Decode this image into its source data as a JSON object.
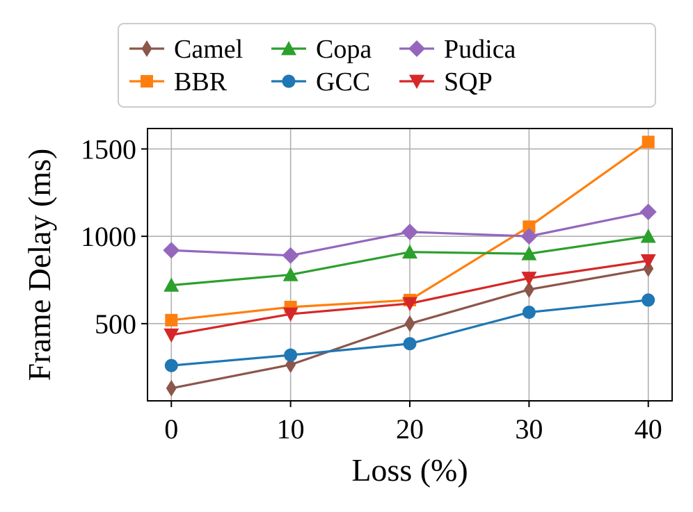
{
  "chart_data": {
    "type": "line",
    "title": "",
    "xlabel": "Loss (%)",
    "ylabel": "Frame Delay (ms)",
    "x": [
      0,
      10,
      20,
      30,
      40
    ],
    "xticks": [
      "0",
      "10",
      "20",
      "30",
      "40"
    ],
    "yticks": [
      "500",
      "1000",
      "1500"
    ],
    "ytick_values": [
      500,
      1000,
      1500
    ],
    "xlim": [
      -2,
      42
    ],
    "ylim": [
      58,
      1617
    ],
    "grid": true,
    "legend_position": "top",
    "series": [
      {
        "name": "Camel",
        "marker": "diamond",
        "color": "#8c564b",
        "values": [
          130,
          265,
          500,
          695,
          815
        ]
      },
      {
        "name": "BBR",
        "marker": "square",
        "color": "#ff7f0e",
        "values": [
          520,
          595,
          635,
          1055,
          1540
        ]
      },
      {
        "name": "Copa",
        "marker": "triangle-up",
        "color": "#2ca02c",
        "values": [
          720,
          780,
          910,
          900,
          1000
        ]
      },
      {
        "name": "GCC",
        "marker": "circle",
        "color": "#1f77b4",
        "values": [
          260,
          320,
          385,
          565,
          635
        ]
      },
      {
        "name": "Pudica",
        "marker": "diamond-wide",
        "color": "#9467bd",
        "values": [
          920,
          890,
          1025,
          1000,
          1140
        ]
      },
      {
        "name": "SQP",
        "marker": "triangle-down",
        "color": "#d62728",
        "values": [
          435,
          555,
          615,
          760,
          860
        ]
      }
    ]
  }
}
